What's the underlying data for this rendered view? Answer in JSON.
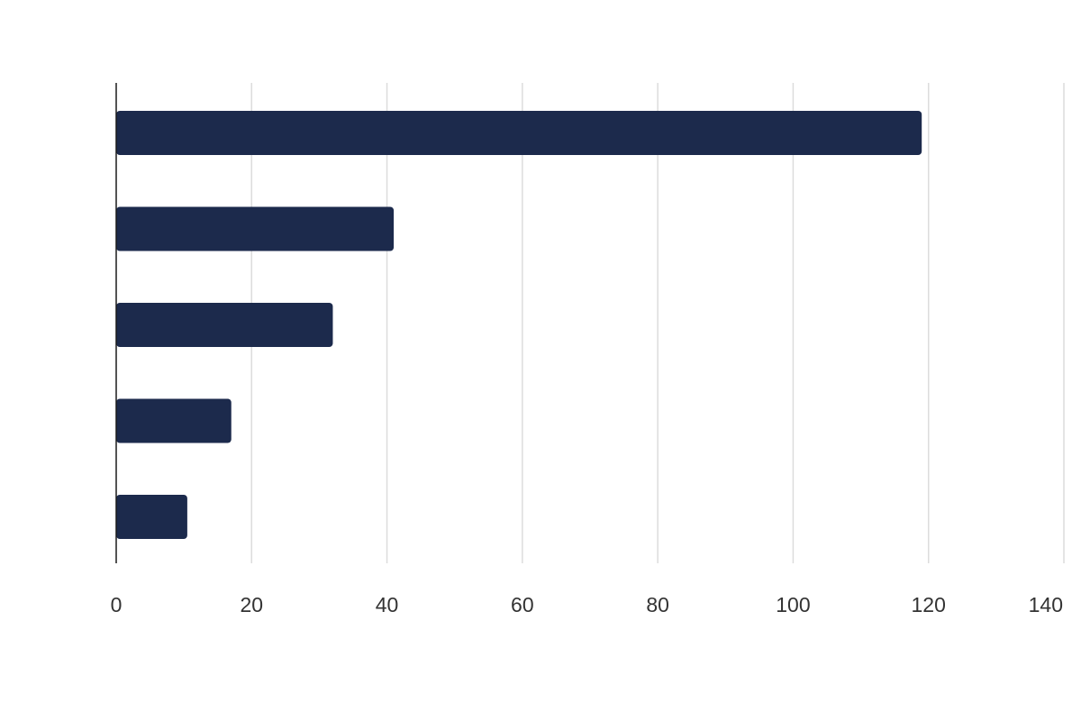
{
  "chart_data": {
    "type": "bar",
    "orientation": "horizontal",
    "title": "",
    "xlabel": "",
    "ylabel": "",
    "categories": [
      "",
      "",
      "",
      "",
      ""
    ],
    "values": [
      119,
      41,
      32,
      17,
      10.5
    ],
    "xlim": [
      0,
      140
    ],
    "x_ticks": [
      0,
      20,
      40,
      60,
      80,
      100,
      120,
      140
    ],
    "grid": "vertical",
    "legend": "none",
    "bar_color": "#1c2a4c"
  }
}
